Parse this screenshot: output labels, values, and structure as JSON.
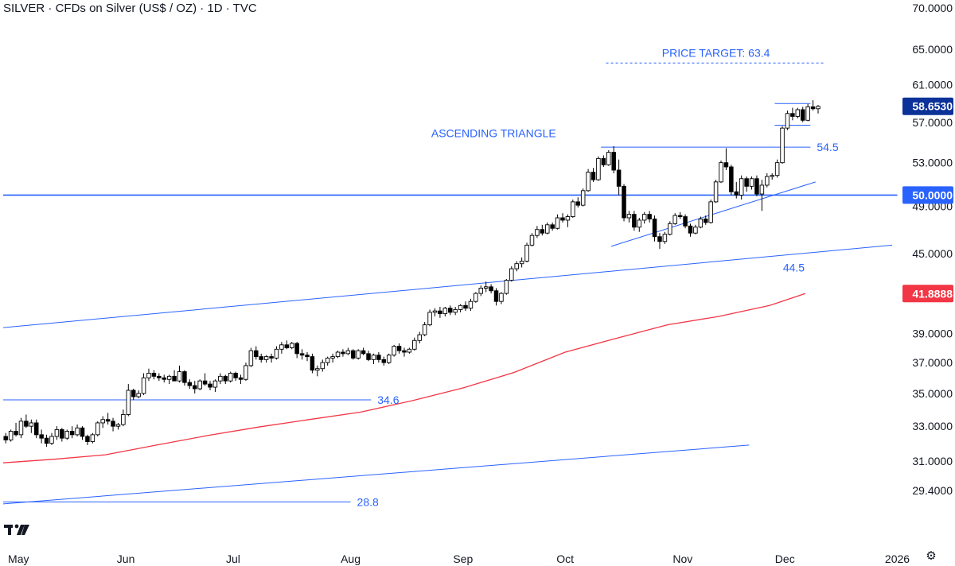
{
  "header": {
    "title": "SILVER · CFDs on Silver (US$ / OZ) · 1D · TVC"
  },
  "icons": {
    "logo": "tradingview-logo-icon",
    "settings": "gear-icon"
  },
  "colors": {
    "up_candle": "#ffffff",
    "down_candle": "#000000",
    "trendline": "#2962ff",
    "ma_line": "#f23645",
    "last_price_badge": "#0c3299",
    "ma_badge": "#f23645",
    "level_badge": "#2962ff",
    "axis_text": "#131722"
  },
  "chart_data": {
    "type": "candlestick",
    "symbol": "SILVER",
    "timeframe": "1D",
    "y_axis": {
      "scale": "log",
      "ticks": [
        {
          "label": "70.0000",
          "value": 70
        },
        {
          "label": "65.0000",
          "value": 65
        },
        {
          "label": "61.0000",
          "value": 61
        },
        {
          "label": "57.0000",
          "value": 57
        },
        {
          "label": "53.0000",
          "value": 53
        },
        {
          "label": "49.0000",
          "value": 49
        },
        {
          "label": "45.0000",
          "value": 45
        },
        {
          "label": "39.0000",
          "value": 39
        },
        {
          "label": "37.0000",
          "value": 37
        },
        {
          "label": "35.0000",
          "value": 35
        },
        {
          "label": "33.0000",
          "value": 33
        },
        {
          "label": "31.0000",
          "value": 31
        },
        {
          "label": "29.4000",
          "value": 29.4
        }
      ]
    },
    "x_axis": {
      "ticks": [
        {
          "label": "May",
          "bar": 3
        },
        {
          "label": "Jun",
          "bar": 24
        },
        {
          "label": "Jul",
          "bar": 45
        },
        {
          "label": "Aug",
          "bar": 68
        },
        {
          "label": "Sep",
          "bar": 90
        },
        {
          "label": "Oct",
          "bar": 110
        },
        {
          "label": "Nov",
          "bar": 133
        },
        {
          "label": "Dec",
          "bar": 153
        },
        {
          "label": "2026",
          "bar": 175
        }
      ]
    },
    "price_badges": [
      {
        "label": "58.6530",
        "value": 58.653,
        "color": "#0c3299"
      },
      {
        "label": "50.0000",
        "value": 50,
        "color": "#2962ff"
      },
      {
        "label": "41.8888",
        "value": 41.8888,
        "color": "#f23645"
      }
    ],
    "candles": [
      [
        32.4,
        32.6,
        32.0,
        32.2
      ],
      [
        32.2,
        32.8,
        32.1,
        32.7
      ],
      [
        32.7,
        33.2,
        32.4,
        32.5
      ],
      [
        32.5,
        33.5,
        32.3,
        33.3
      ],
      [
        33.3,
        33.7,
        32.9,
        33.0
      ],
      [
        33.0,
        33.4,
        32.6,
        33.2
      ],
      [
        33.2,
        33.4,
        32.3,
        32.5
      ],
      [
        32.5,
        32.8,
        32.0,
        32.3
      ],
      [
        32.3,
        32.5,
        31.8,
        32.0
      ],
      [
        32.0,
        32.6,
        31.9,
        32.4
      ],
      [
        32.4,
        33.0,
        32.2,
        32.8
      ],
      [
        32.8,
        32.9,
        32.1,
        32.3
      ],
      [
        32.3,
        32.8,
        32.2,
        32.7
      ],
      [
        32.7,
        33.0,
        32.3,
        32.5
      ],
      [
        32.5,
        33.1,
        32.4,
        32.9
      ],
      [
        32.9,
        33.0,
        32.2,
        32.4
      ],
      [
        32.4,
        32.5,
        31.9,
        32.1
      ],
      [
        32.1,
        32.6,
        32.0,
        32.5
      ],
      [
        32.5,
        33.3,
        32.4,
        33.2
      ],
      [
        33.2,
        33.6,
        32.9,
        33.4
      ],
      [
        33.4,
        33.8,
        33.1,
        33.3
      ],
      [
        33.3,
        33.5,
        32.7,
        33.0
      ],
      [
        33.0,
        33.2,
        32.8,
        33.1
      ],
      [
        33.1,
        34.0,
        33.0,
        33.7
      ],
      [
        33.7,
        35.6,
        33.6,
        35.2
      ],
      [
        35.2,
        35.3,
        34.6,
        34.8
      ],
      [
        34.8,
        35.2,
        34.7,
        35.0
      ],
      [
        35.0,
        36.3,
        34.9,
        36.0
      ],
      [
        36.0,
        36.6,
        35.8,
        36.3
      ],
      [
        36.3,
        36.5,
        35.9,
        36.1
      ],
      [
        36.1,
        36.3,
        35.8,
        36.0
      ],
      [
        36.0,
        36.2,
        35.7,
        35.9
      ],
      [
        35.9,
        36.2,
        35.6,
        36.1
      ],
      [
        36.1,
        36.5,
        35.9,
        35.8
      ],
      [
        35.8,
        36.8,
        35.7,
        36.4
      ],
      [
        36.4,
        36.5,
        35.5,
        35.7
      ],
      [
        35.7,
        35.9,
        35.3,
        35.5
      ],
      [
        35.5,
        35.8,
        35.0,
        35.3
      ],
      [
        35.3,
        35.9,
        35.2,
        35.8
      ],
      [
        35.8,
        36.3,
        35.5,
        35.6
      ],
      [
        35.6,
        35.8,
        35.2,
        35.4
      ],
      [
        35.4,
        35.9,
        35.1,
        35.8
      ],
      [
        35.8,
        36.3,
        35.6,
        36.1
      ],
      [
        36.1,
        36.2,
        35.6,
        35.8
      ],
      [
        35.8,
        36.4,
        35.7,
        36.3
      ],
      [
        36.3,
        36.4,
        35.8,
        36.0
      ],
      [
        36.0,
        36.2,
        35.6,
        35.9
      ],
      [
        35.9,
        37.0,
        35.8,
        36.8
      ],
      [
        36.8,
        38.0,
        36.7,
        37.8
      ],
      [
        37.8,
        38.1,
        37.2,
        37.4
      ],
      [
        37.4,
        37.6,
        37.0,
        37.2
      ],
      [
        37.2,
        37.5,
        37.0,
        37.4
      ],
      [
        37.4,
        37.6,
        37.0,
        37.3
      ],
      [
        37.3,
        38.1,
        37.2,
        37.9
      ],
      [
        37.9,
        38.4,
        37.6,
        38.2
      ],
      [
        38.2,
        38.5,
        37.9,
        38.0
      ],
      [
        38.0,
        38.4,
        37.9,
        38.3
      ],
      [
        38.3,
        38.4,
        37.3,
        37.6
      ],
      [
        37.6,
        37.9,
        37.2,
        37.5
      ],
      [
        37.5,
        37.7,
        37.1,
        37.4
      ],
      [
        37.4,
        37.6,
        36.3,
        36.5
      ],
      [
        36.5,
        36.8,
        36.1,
        36.6
      ],
      [
        36.6,
        37.2,
        36.4,
        37.0
      ],
      [
        37.0,
        37.4,
        36.8,
        37.3
      ],
      [
        37.3,
        37.6,
        37.0,
        37.4
      ],
      [
        37.4,
        37.8,
        37.3,
        37.7
      ],
      [
        37.7,
        37.9,
        37.4,
        37.6
      ],
      [
        37.6,
        38.0,
        37.5,
        37.8
      ],
      [
        37.8,
        37.9,
        37.2,
        37.3
      ],
      [
        37.3,
        37.9,
        37.2,
        37.8
      ],
      [
        37.8,
        38.0,
        37.5,
        37.6
      ],
      [
        37.6,
        37.8,
        37.1,
        37.2
      ],
      [
        37.2,
        37.6,
        36.9,
        37.5
      ],
      [
        37.5,
        37.7,
        37.0,
        37.2
      ],
      [
        37.2,
        37.4,
        36.8,
        37.0
      ],
      [
        37.0,
        37.6,
        36.9,
        37.5
      ],
      [
        37.5,
        38.2,
        37.4,
        38.1
      ],
      [
        38.1,
        38.3,
        37.6,
        37.8
      ],
      [
        37.8,
        38.0,
        37.4,
        37.7
      ],
      [
        37.7,
        38.0,
        37.6,
        37.9
      ],
      [
        37.9,
        38.7,
        37.8,
        38.5
      ],
      [
        38.5,
        39.1,
        38.3,
        38.9
      ],
      [
        38.9,
        39.8,
        38.8,
        39.6
      ],
      [
        39.6,
        40.7,
        39.5,
        40.5
      ],
      [
        40.5,
        40.8,
        40.2,
        40.6
      ],
      [
        40.6,
        40.9,
        40.1,
        40.4
      ],
      [
        40.4,
        40.9,
        40.2,
        40.8
      ],
      [
        40.8,
        41.0,
        40.3,
        40.5
      ],
      [
        40.5,
        40.9,
        40.3,
        40.7
      ],
      [
        40.7,
        41.1,
        40.5,
        41.0
      ],
      [
        41.0,
        41.3,
        40.6,
        40.8
      ],
      [
        40.8,
        41.5,
        40.6,
        41.3
      ],
      [
        41.3,
        42.0,
        41.2,
        41.9
      ],
      [
        41.9,
        42.5,
        41.7,
        42.3
      ],
      [
        42.3,
        42.8,
        42.0,
        42.4
      ],
      [
        42.4,
        42.6,
        41.9,
        42.1
      ],
      [
        42.1,
        42.3,
        41.0,
        41.3
      ],
      [
        41.3,
        42.0,
        41.1,
        41.9
      ],
      [
        41.9,
        43.0,
        41.8,
        42.9
      ],
      [
        42.9,
        44.0,
        42.8,
        43.8
      ],
      [
        43.8,
        44.4,
        43.6,
        44.2
      ],
      [
        44.2,
        44.7,
        43.9,
        44.4
      ],
      [
        44.4,
        45.9,
        44.3,
        45.7
      ],
      [
        45.7,
        46.7,
        45.6,
        46.5
      ],
      [
        46.5,
        47.3,
        46.3,
        47.0
      ],
      [
        47.0,
        47.4,
        46.5,
        46.7
      ],
      [
        46.7,
        47.6,
        46.6,
        47.4
      ],
      [
        47.4,
        47.6,
        46.9,
        47.1
      ],
      [
        47.1,
        48.3,
        47.0,
        48.0
      ],
      [
        48.0,
        48.4,
        47.6,
        47.8
      ],
      [
        47.8,
        48.3,
        47.2,
        48.1
      ],
      [
        48.1,
        49.6,
        48.0,
        49.4
      ],
      [
        49.4,
        49.8,
        48.9,
        49.1
      ],
      [
        49.1,
        50.6,
        49.0,
        50.4
      ],
      [
        50.4,
        52.4,
        50.3,
        52.1
      ],
      [
        52.1,
        52.5,
        51.2,
        51.4
      ],
      [
        51.4,
        53.6,
        51.3,
        53.4
      ],
      [
        53.4,
        53.7,
        52.6,
        52.8
      ],
      [
        52.8,
        54.2,
        52.7,
        54.0
      ],
      [
        54.0,
        54.6,
        52.0,
        52.3
      ],
      [
        52.3,
        53.3,
        50.0,
        50.8
      ],
      [
        50.8,
        51.0,
        47.7,
        48.0
      ],
      [
        48.0,
        48.6,
        47.6,
        48.3
      ],
      [
        48.3,
        48.6,
        46.9,
        47.2
      ],
      [
        47.2,
        48.0,
        46.8,
        47.8
      ],
      [
        47.8,
        48.5,
        47.5,
        48.3
      ],
      [
        48.3,
        48.6,
        47.6,
        47.9
      ],
      [
        47.9,
        48.2,
        46.0,
        46.4
      ],
      [
        46.4,
        46.7,
        45.4,
        46.0
      ],
      [
        46.0,
        46.8,
        45.8,
        46.6
      ],
      [
        46.6,
        47.7,
        46.5,
        47.5
      ],
      [
        47.5,
        48.4,
        47.4,
        48.2
      ],
      [
        48.2,
        48.5,
        47.9,
        48.1
      ],
      [
        48.1,
        48.3,
        47.1,
        47.3
      ],
      [
        47.3,
        47.5,
        46.4,
        46.7
      ],
      [
        46.7,
        47.4,
        46.6,
        47.2
      ],
      [
        47.2,
        48.1,
        47.1,
        47.9
      ],
      [
        47.9,
        48.2,
        47.4,
        47.6
      ],
      [
        47.6,
        49.6,
        47.5,
        49.4
      ],
      [
        49.4,
        51.4,
        49.3,
        51.2
      ],
      [
        51.2,
        53.2,
        51.1,
        53.0
      ],
      [
        53.0,
        54.4,
        52.3,
        52.6
      ],
      [
        52.6,
        52.8,
        50.0,
        50.3
      ],
      [
        50.3,
        51.2,
        49.7,
        50.0
      ],
      [
        50.0,
        51.8,
        49.6,
        51.5
      ],
      [
        51.5,
        51.7,
        50.3,
        50.8
      ],
      [
        50.8,
        51.7,
        50.5,
        51.5
      ],
      [
        51.5,
        51.8,
        49.9,
        50.1
      ],
      [
        50.1,
        51.4,
        48.6,
        50.9
      ],
      [
        50.9,
        52.0,
        50.7,
        51.7
      ],
      [
        51.7,
        52.0,
        51.4,
        51.8
      ],
      [
        51.8,
        53.3,
        51.6,
        53.0
      ],
      [
        53.0,
        56.6,
        52.9,
        56.4
      ],
      [
        56.4,
        58.2,
        56.2,
        57.9
      ],
      [
        57.9,
        58.5,
        57.2,
        57.6
      ],
      [
        57.6,
        58.5,
        57.4,
        58.3
      ],
      [
        58.3,
        58.6,
        57.0,
        57.2
      ],
      [
        57.2,
        58.9,
        57.1,
        58.6
      ],
      [
        58.6,
        59.3,
        58.2,
        58.4
      ],
      [
        58.4,
        58.8,
        57.9,
        58.65
      ]
    ],
    "moving_average": [
      {
        "bar": 0,
        "value": 30.9
      },
      {
        "bar": 10,
        "value": 31.1
      },
      {
        "bar": 20,
        "value": 31.35
      },
      {
        "bar": 30,
        "value": 31.9
      },
      {
        "bar": 40,
        "value": 32.45
      },
      {
        "bar": 50,
        "value": 32.95
      },
      {
        "bar": 60,
        "value": 33.4
      },
      {
        "bar": 70,
        "value": 33.85
      },
      {
        "bar": 80,
        "value": 34.55
      },
      {
        "bar": 90,
        "value": 35.35
      },
      {
        "bar": 100,
        "value": 36.35
      },
      {
        "bar": 110,
        "value": 37.7
      },
      {
        "bar": 120,
        "value": 38.65
      },
      {
        "bar": 130,
        "value": 39.6
      },
      {
        "bar": 140,
        "value": 40.2
      },
      {
        "bar": 150,
        "value": 41.0
      },
      {
        "bar": 157,
        "value": 41.8888
      }
    ],
    "drawings": {
      "horizontal_levels": [
        {
          "name": "level-50",
          "value": 50,
          "from_bar": 0,
          "to_bar": 175,
          "label": ""
        },
        {
          "name": "level-54-5",
          "value": 54.5,
          "from_bar": 117,
          "to_bar": 158,
          "label": "54.5"
        },
        {
          "name": "level-34-6",
          "value": 34.6,
          "from_bar": 0,
          "to_bar": 72,
          "label": "34.6"
        },
        {
          "name": "level-28-8",
          "value": 28.8,
          "from_bar": 0,
          "to_bar": 68,
          "label": "28.8"
        },
        {
          "name": "range-top",
          "value": 58.95,
          "from_bar": 151,
          "to_bar": 158,
          "label": ""
        },
        {
          "name": "range-bottom",
          "value": 56.7,
          "from_bar": 151,
          "to_bar": 158,
          "label": ""
        }
      ],
      "price_target": {
        "value": 63.4,
        "from_bar": 118,
        "to_bar": 161,
        "label": "PRICE TARGET: 63.4"
      },
      "trendlines": [
        {
          "name": "triangle-support",
          "from": {
            "bar": 119,
            "value": 45.6
          },
          "to": {
            "bar": 159,
            "value": 51.2
          }
        },
        {
          "name": "channel-upper",
          "from": {
            "bar": 0,
            "value": 39.4
          },
          "to": {
            "bar": 174,
            "value": 45.7
          },
          "label": "44.5",
          "label_at_bar": 152
        },
        {
          "name": "channel-lower",
          "from": {
            "bar": 0,
            "value": 28.7
          },
          "to": {
            "bar": 146,
            "value": 31.9
          }
        }
      ],
      "annotations": [
        {
          "name": "ascending-triangle-label",
          "text": "ASCENDING TRIANGLE",
          "bar": 96,
          "value": 55.5
        }
      ]
    }
  }
}
